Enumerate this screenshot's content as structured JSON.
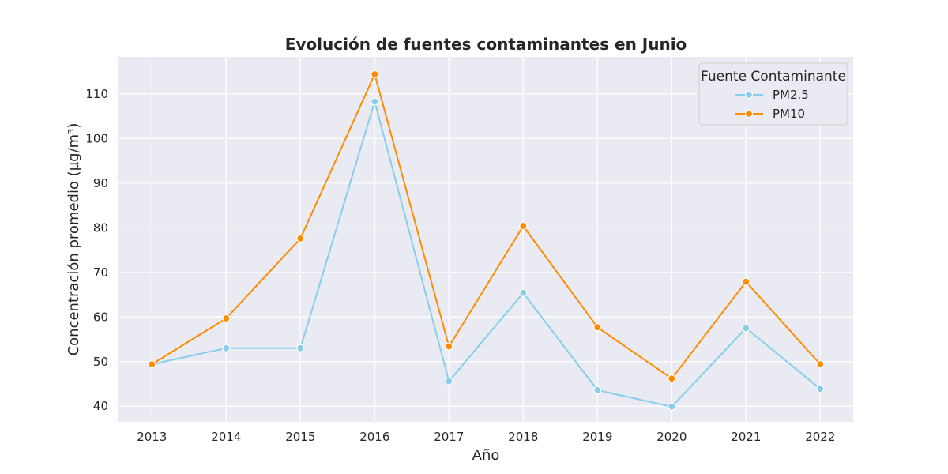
{
  "chart_data": {
    "type": "line",
    "title": "Evolución de fuentes contaminantes en Junio",
    "xlabel": "Año",
    "ylabel": "Concentración promedio (µg/m³)",
    "x": [
      "2013",
      "2014",
      "2015",
      "2016",
      "2017",
      "2018",
      "2019",
      "2020",
      "2021",
      "2022"
    ],
    "ylim": [
      36.5,
      118.3
    ],
    "yticks": [
      "40",
      "50",
      "60",
      "70",
      "80",
      "90",
      "100",
      "110"
    ],
    "grid": true,
    "legend": {
      "title": "Fuente Contaminante",
      "placement": "top-right"
    },
    "series": [
      {
        "name": "PM2.5",
        "color": "#87ceeb",
        "values": [
          49.4,
          53.0,
          53.0,
          108.3,
          45.6,
          65.4,
          43.6,
          39.9,
          57.5,
          43.9
        ]
      },
      {
        "name": "PM10",
        "color": "#ff8c00",
        "values": [
          49.4,
          59.7,
          77.6,
          114.4,
          53.4,
          80.4,
          57.7,
          46.2,
          67.9,
          49.4
        ]
      }
    ],
    "colors": {
      "plot_background": "#eaeaf2",
      "grid": "#ffffff"
    }
  }
}
